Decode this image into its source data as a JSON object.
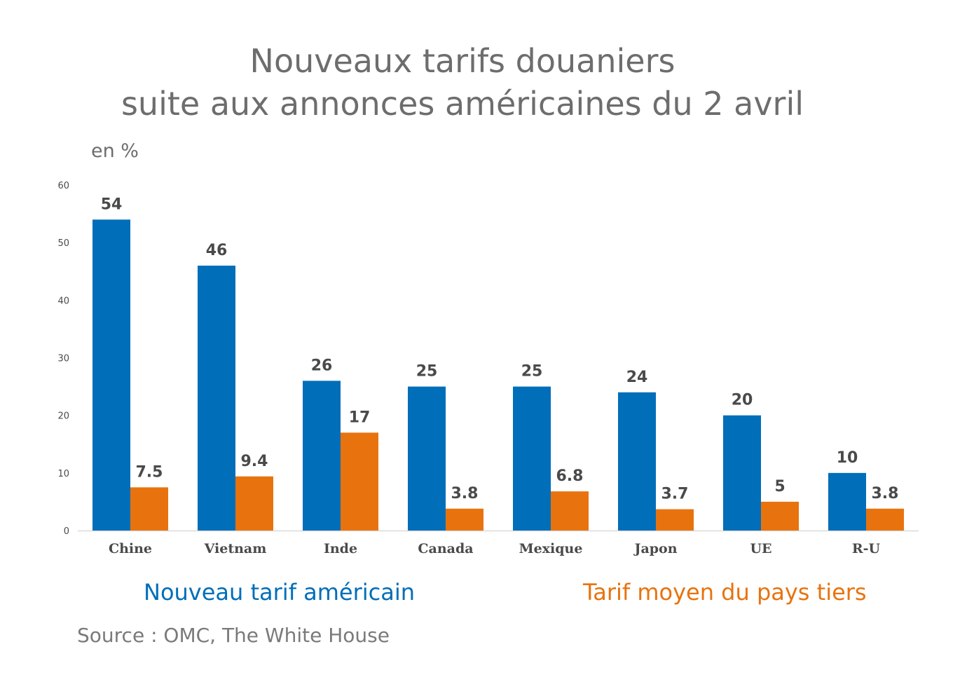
{
  "colors": {
    "series_blue": "#006EB9",
    "series_orange": "#E8730E",
    "text_gray": "#6d6d6d",
    "label_dark": "#4a4a4a"
  },
  "unit_label": "en %",
  "source": "Source : OMC, The White House",
  "chart_data": {
    "type": "bar",
    "title": [
      "Nouveaux tarifs douaniers",
      "suite aux annonces américaines du 2 avril"
    ],
    "ylabel": "en %",
    "xlabel": "",
    "ylim": [
      0,
      60
    ],
    "yticks": [
      0,
      10,
      20,
      30,
      40,
      50,
      60
    ],
    "grid": false,
    "legend_placement": "bottom",
    "categories": [
      "Chine",
      "Vietnam",
      "Inde",
      "Canada",
      "Mexique",
      "Japon",
      "UE",
      "R-U"
    ],
    "series": [
      {
        "name": "Nouveau tarif américain",
        "color": "#006EB9",
        "values": [
          54,
          46,
          26,
          25,
          25,
          24,
          20,
          10
        ],
        "labels": [
          "54",
          "46",
          "26",
          "25",
          "25",
          "24",
          "20",
          "10"
        ]
      },
      {
        "name": "Tarif moyen du pays tiers",
        "color": "#E8730E",
        "values": [
          7.5,
          9.4,
          17,
          3.8,
          6.8,
          3.7,
          5,
          3.8
        ],
        "labels": [
          "7.5",
          "9.4",
          "17",
          "3.8",
          "6.8",
          "3.7",
          "5",
          "3.8"
        ]
      }
    ]
  }
}
